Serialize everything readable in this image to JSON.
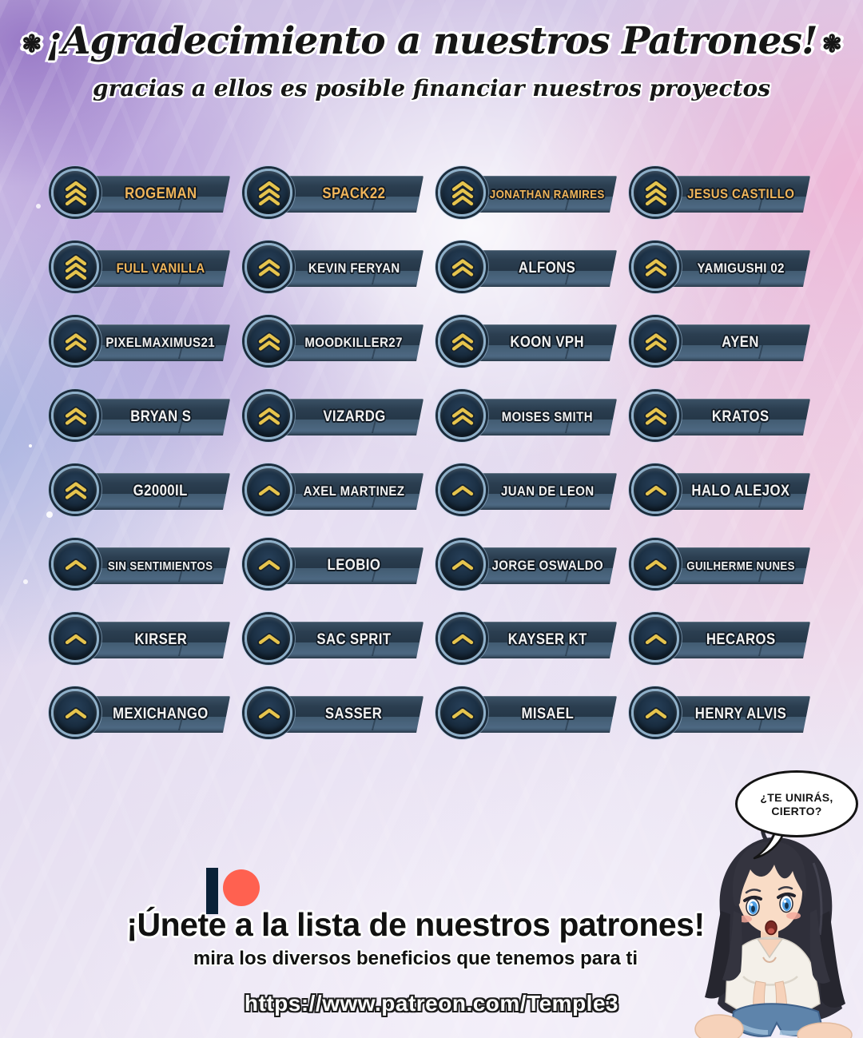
{
  "colors": {
    "gold_text": "#f0b55a",
    "white_text": "#f2f2f2",
    "chevron_gold": "#e6c44d",
    "plate": "#2b3e50",
    "plate_band": "#4d6882",
    "circle_ring": "#8fb0c9",
    "patreon_coral": "#ff6150",
    "outline_dark": "#121b25"
  },
  "header": {
    "ornament_left": "❃",
    "title": "¡Agradecimiento a nuestros Patrones!",
    "ornament_right": "❃",
    "subtitle": "gracias a ellos es posible financiar nuestros proyectos"
  },
  "patrons": [
    {
      "name": "ROGEMAN",
      "tier": 3,
      "gold": true
    },
    {
      "name": "SPACK22",
      "tier": 3,
      "gold": true
    },
    {
      "name": "JONATHAN RAMIRES",
      "tier": 3,
      "gold": true
    },
    {
      "name": "JESUS CASTILLO",
      "tier": 3,
      "gold": true
    },
    {
      "name": "FULL VANILLA",
      "tier": 3,
      "gold": true
    },
    {
      "name": "KEVIN FERYAN",
      "tier": 2,
      "gold": false
    },
    {
      "name": "ALFONS",
      "tier": 2,
      "gold": false
    },
    {
      "name": "YAMIGUSHI 02",
      "tier": 2,
      "gold": false
    },
    {
      "name": "PIXELMAXIMUS21",
      "tier": 2,
      "gold": false
    },
    {
      "name": "MOODKILLER27",
      "tier": 2,
      "gold": false
    },
    {
      "name": "KOON VPH",
      "tier": 2,
      "gold": false
    },
    {
      "name": "AYEN",
      "tier": 2,
      "gold": false
    },
    {
      "name": "BRYAN S",
      "tier": 2,
      "gold": false
    },
    {
      "name": "VIZARDG",
      "tier": 2,
      "gold": false
    },
    {
      "name": "MOISES SMITH",
      "tier": 2,
      "gold": false
    },
    {
      "name": "KRATOS",
      "tier": 2,
      "gold": false
    },
    {
      "name": "G2000IL",
      "tier": 2,
      "gold": false
    },
    {
      "name": "AXEL MARTINEZ",
      "tier": 1,
      "gold": false
    },
    {
      "name": "JUAN DE LEON",
      "tier": 1,
      "gold": false
    },
    {
      "name": "HALO ALEJOX",
      "tier": 1,
      "gold": false
    },
    {
      "name": "SIN SENTIMIENTOS",
      "tier": 1,
      "gold": false
    },
    {
      "name": "LEOBIO",
      "tier": 1,
      "gold": false
    },
    {
      "name": "JORGE OSWALDO",
      "tier": 1,
      "gold": false
    },
    {
      "name": "GUILHERME NUNES",
      "tier": 1,
      "gold": false
    },
    {
      "name": "KIRSER",
      "tier": 1,
      "gold": false
    },
    {
      "name": "SAC SPRIT",
      "tier": 1,
      "gold": false
    },
    {
      "name": "KAYSER KT",
      "tier": 1,
      "gold": false
    },
    {
      "name": "HECAROS",
      "tier": 1,
      "gold": false
    },
    {
      "name": "MEXICHANGO",
      "tier": 1,
      "gold": false
    },
    {
      "name": "SASSER",
      "tier": 1,
      "gold": false
    },
    {
      "name": "MISAEL",
      "tier": 1,
      "gold": false
    },
    {
      "name": "HENRY ALVIS",
      "tier": 1,
      "gold": false
    }
  ],
  "speech_bubble": {
    "line1": "¿TE UNIRÁS,",
    "line2": "CIERTO?"
  },
  "footer": {
    "join_title": "¡Únete a la lista de nuestros patrones!",
    "join_subtitle": "mira los diversos beneficios que tenemos para ti",
    "url": "https://www.patreon.com/Temple3"
  }
}
